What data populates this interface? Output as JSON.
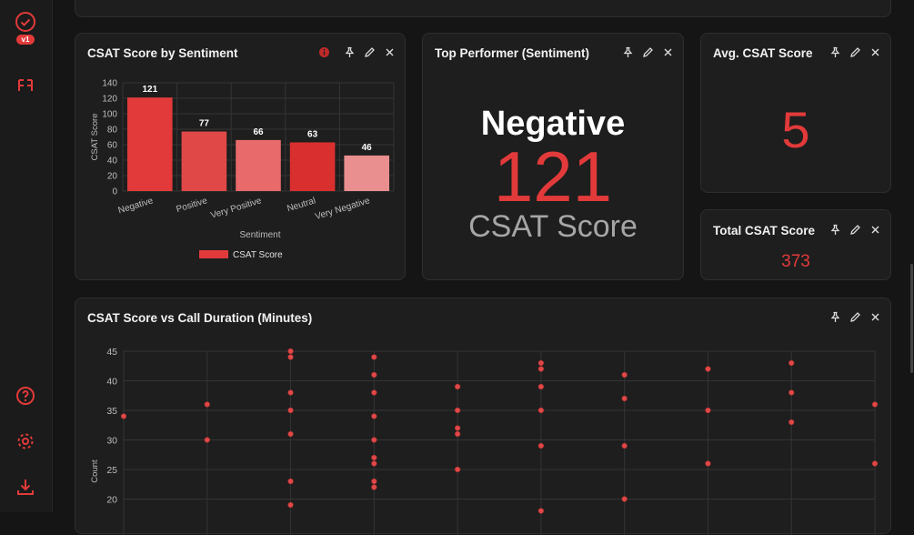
{
  "app": {
    "version_badge": "v1"
  },
  "colors": {
    "accent": "#e23a3a",
    "card_bg": "#1e1e1e",
    "page_bg": "#151515"
  },
  "sidebar": {
    "top_icons": [
      "check-circle-icon",
      "layout-icon"
    ],
    "bottom_icons": [
      "help-icon",
      "settings-icon",
      "download-icon"
    ]
  },
  "cards": {
    "sentiment": {
      "title": "CSAT Score by Sentiment"
    },
    "top_performer": {
      "title": "Top Performer (Sentiment)",
      "category": "Negative",
      "value": "121",
      "metric": "CSAT Score"
    },
    "avg": {
      "title": "Avg. CSAT Score",
      "value": "5"
    },
    "total": {
      "title": "Total CSAT Score",
      "value": "373"
    },
    "scatter": {
      "title": "CSAT Score vs Call Duration (Minutes)"
    }
  },
  "chart_data": [
    {
      "type": "bar",
      "title": "CSAT Score by Sentiment",
      "categories": [
        "Negative",
        "Positive",
        "Very Positive",
        "Neutral",
        "Very Negative"
      ],
      "values": [
        121,
        77,
        66,
        63,
        46
      ],
      "colors": [
        "#e23a3a",
        "#e04848",
        "#e86a6a",
        "#d92f2f",
        "#ea8f8f"
      ],
      "xlabel": "Sentiment",
      "ylabel": "CSAT Score",
      "yticks": [
        0,
        20,
        40,
        60,
        80,
        100,
        120,
        140
      ],
      "ylim": [
        0,
        140
      ],
      "legend": [
        {
          "label": "CSAT Score",
          "color": "#e23a3a"
        }
      ]
    },
    {
      "type": "scatter",
      "title": "CSAT Score vs Call Duration (Minutes)",
      "ylabel": "Count",
      "yticks": [
        20,
        25,
        30,
        35,
        40,
        45
      ],
      "ylim": [
        18,
        45.5
      ],
      "xlim": [
        0,
        9
      ],
      "columns": [
        {
          "x": 0,
          "ys": [
            34
          ]
        },
        {
          "x": 1,
          "ys": [
            36,
            30
          ]
        },
        {
          "x": 2,
          "ys": [
            45,
            44,
            38,
            35,
            31,
            23,
            19
          ]
        },
        {
          "x": 3,
          "ys": [
            44,
            41,
            38,
            34,
            30,
            27,
            26,
            23,
            22
          ]
        },
        {
          "x": 4,
          "ys": [
            39,
            35,
            32,
            31,
            25
          ]
        },
        {
          "x": 5,
          "ys": [
            43,
            42,
            39,
            35,
            29,
            18
          ]
        },
        {
          "x": 6,
          "ys": [
            41,
            37,
            29,
            20
          ]
        },
        {
          "x": 7,
          "ys": [
            42,
            35,
            26
          ]
        },
        {
          "x": 8,
          "ys": [
            43,
            38,
            33
          ]
        },
        {
          "x": 9,
          "ys": [
            36,
            26
          ]
        }
      ]
    }
  ]
}
